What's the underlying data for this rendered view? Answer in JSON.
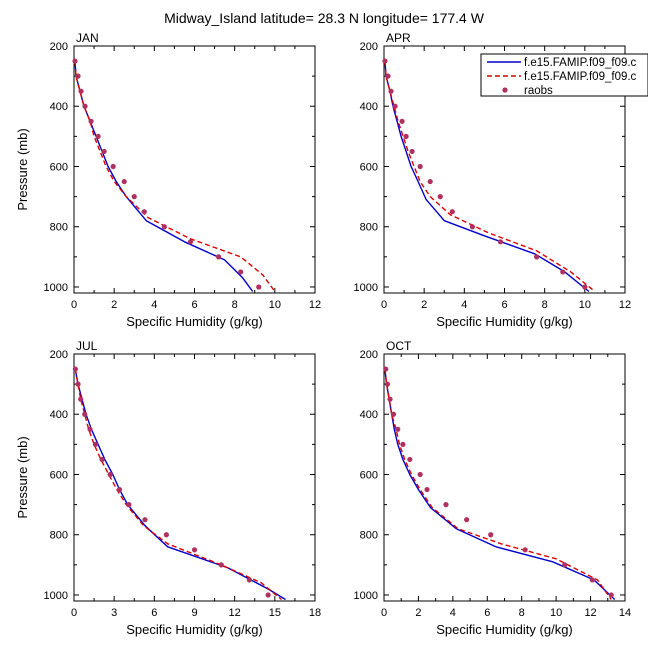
{
  "title": "Midway_Island  latitude= 28.3 N longitude= 177.4 W",
  "legend": [
    {
      "label": "f.e15.FAMIP.f09_f09.c",
      "color": "#0000cc",
      "style": "solid"
    },
    {
      "label": "f.e15.FAMIP.f09_f09.c",
      "color": "#dd0000",
      "style": "dashed"
    },
    {
      "label": "raobs",
      "color": "#b03060",
      "style": "marker"
    }
  ],
  "chart_data": [
    {
      "type": "line",
      "panel": "JAN",
      "xlabel": "Specific Humidity (g/kg)",
      "ylabel": "Pressure (mb)",
      "xlim": [
        0,
        12
      ],
      "ylim": [
        1020,
        200
      ],
      "xticks": [
        0,
        2,
        4,
        6,
        8,
        10,
        12
      ],
      "yticks": [
        200,
        400,
        600,
        800,
        1000
      ],
      "series": [
        {
          "name": "f.e15.FAMIP.f09_f09.c",
          "points": [
            [
              0.05,
              250
            ],
            [
              0.1,
              300
            ],
            [
              0.3,
              350
            ],
            [
              0.5,
              400
            ],
            [
              0.8,
              450
            ],
            [
              1.1,
              500
            ],
            [
              1.4,
              550
            ],
            [
              1.7,
              600
            ],
            [
              2.1,
              650
            ],
            [
              2.6,
              700
            ],
            [
              3.6,
              780
            ],
            [
              5.5,
              850
            ],
            [
              7.5,
              910
            ],
            [
              8.4,
              970
            ],
            [
              8.9,
              1015
            ]
          ]
        },
        {
          "name": "f.e15.FAMIP.f09_f09.c",
          "points": [
            [
              0.05,
              250
            ],
            [
              0.1,
              300
            ],
            [
              0.3,
              350
            ],
            [
              0.5,
              400
            ],
            [
              0.8,
              450
            ],
            [
              1.0,
              500
            ],
            [
              1.3,
              550
            ],
            [
              1.6,
              600
            ],
            [
              2.0,
              650
            ],
            [
              2.6,
              700
            ],
            [
              3.7,
              770
            ],
            [
              5.8,
              840
            ],
            [
              8.3,
              900
            ],
            [
              9.4,
              960
            ],
            [
              10.0,
              1015
            ]
          ]
        },
        {
          "name": "raobs",
          "points": [
            [
              0.05,
              250
            ],
            [
              0.2,
              300
            ],
            [
              0.35,
              350
            ],
            [
              0.55,
              400
            ],
            [
              0.85,
              450
            ],
            [
              1.2,
              500
            ],
            [
              1.5,
              550
            ],
            [
              1.95,
              600
            ],
            [
              2.5,
              650
            ],
            [
              3.0,
              700
            ],
            [
              3.5,
              750
            ],
            [
              4.5,
              800
            ],
            [
              5.8,
              850
            ],
            [
              7.2,
              900
            ],
            [
              8.3,
              950
            ],
            [
              9.2,
              1000
            ]
          ]
        }
      ]
    },
    {
      "type": "line",
      "panel": "APR",
      "xlabel": "Specific Humidity (g/kg)",
      "ylabel": "",
      "xlim": [
        0,
        12
      ],
      "ylim": [
        1020,
        200
      ],
      "xticks": [
        0,
        2,
        4,
        6,
        8,
        10,
        12
      ],
      "yticks": [
        200,
        400,
        600,
        800,
        1000
      ],
      "series": [
        {
          "name": "f.e15.FAMIP.f09_f09.c",
          "points": [
            [
              0.05,
              250
            ],
            [
              0.1,
              300
            ],
            [
              0.3,
              350
            ],
            [
              0.45,
              400
            ],
            [
              0.65,
              450
            ],
            [
              0.85,
              500
            ],
            [
              1.1,
              550
            ],
            [
              1.35,
              600
            ],
            [
              1.7,
              650
            ],
            [
              2.1,
              710
            ],
            [
              3.0,
              780
            ],
            [
              5.0,
              830
            ],
            [
              7.5,
              890
            ],
            [
              9.0,
              950
            ],
            [
              10.2,
              1015
            ]
          ]
        },
        {
          "name": "f.e15.FAMIP.f09_f09.c",
          "points": [
            [
              0.05,
              250
            ],
            [
              0.1,
              300
            ],
            [
              0.3,
              350
            ],
            [
              0.5,
              400
            ],
            [
              0.7,
              450
            ],
            [
              0.95,
              500
            ],
            [
              1.2,
              550
            ],
            [
              1.5,
              600
            ],
            [
              1.8,
              650
            ],
            [
              2.3,
              700
            ],
            [
              3.3,
              760
            ],
            [
              5.2,
              820
            ],
            [
              7.6,
              880
            ],
            [
              9.3,
              950
            ],
            [
              10.5,
              1015
            ]
          ]
        },
        {
          "name": "raobs",
          "points": [
            [
              0.05,
              250
            ],
            [
              0.2,
              300
            ],
            [
              0.35,
              350
            ],
            [
              0.55,
              400
            ],
            [
              0.9,
              450
            ],
            [
              1.1,
              500
            ],
            [
              1.4,
              550
            ],
            [
              1.8,
              600
            ],
            [
              2.3,
              650
            ],
            [
              2.8,
              700
            ],
            [
              3.4,
              750
            ],
            [
              4.4,
              800
            ],
            [
              5.8,
              850
            ],
            [
              7.6,
              900
            ],
            [
              8.9,
              950
            ],
            [
              10.0,
              1000
            ]
          ]
        }
      ]
    },
    {
      "type": "line",
      "panel": "JUL",
      "xlabel": "Specific Humidity (g/kg)",
      "ylabel": "Pressure (mb)",
      "xlim": [
        0,
        18
      ],
      "ylim": [
        1020,
        200
      ],
      "xticks": [
        0,
        3,
        6,
        9,
        12,
        15,
        18
      ],
      "yticks": [
        200,
        400,
        600,
        800,
        1000
      ],
      "series": [
        {
          "name": "f.e15.FAMIP.f09_f09.c",
          "points": [
            [
              0.1,
              250
            ],
            [
              0.3,
              300
            ],
            [
              0.6,
              350
            ],
            [
              0.9,
              400
            ],
            [
              1.3,
              450
            ],
            [
              1.8,
              500
            ],
            [
              2.3,
              550
            ],
            [
              2.9,
              600
            ],
            [
              3.4,
              650
            ],
            [
              4.0,
              700
            ],
            [
              5.3,
              770
            ],
            [
              7.0,
              840
            ],
            [
              11.5,
              910
            ],
            [
              14.5,
              980
            ],
            [
              15.8,
              1015
            ]
          ]
        },
        {
          "name": "f.e15.FAMIP.f09_f09.c",
          "points": [
            [
              0.1,
              250
            ],
            [
              0.3,
              300
            ],
            [
              0.5,
              350
            ],
            [
              0.8,
              400
            ],
            [
              1.1,
              450
            ],
            [
              1.5,
              500
            ],
            [
              2.0,
              550
            ],
            [
              2.6,
              600
            ],
            [
              3.2,
              650
            ],
            [
              3.9,
              700
            ],
            [
              5.2,
              770
            ],
            [
              7.0,
              830
            ],
            [
              11.0,
              900
            ],
            [
              14.0,
              960
            ],
            [
              15.5,
              1015
            ]
          ]
        },
        {
          "name": "raobs",
          "points": [
            [
              0.1,
              250
            ],
            [
              0.3,
              300
            ],
            [
              0.5,
              350
            ],
            [
              0.8,
              400
            ],
            [
              1.2,
              450
            ],
            [
              1.6,
              500
            ],
            [
              2.1,
              550
            ],
            [
              2.7,
              600
            ],
            [
              3.4,
              650
            ],
            [
              4.1,
              700
            ],
            [
              5.3,
              750
            ],
            [
              6.9,
              800
            ],
            [
              9.0,
              850
            ],
            [
              11.0,
              900
            ],
            [
              13.1,
              950
            ],
            [
              14.5,
              1000
            ]
          ]
        }
      ]
    },
    {
      "type": "line",
      "panel": "OCT",
      "xlabel": "Specific Humidity (g/kg)",
      "ylabel": "",
      "xlim": [
        0,
        14
      ],
      "ylim": [
        1020,
        200
      ],
      "xticks": [
        0,
        2,
        4,
        6,
        8,
        10,
        12,
        14
      ],
      "yticks": [
        200,
        400,
        600,
        800,
        1000
      ],
      "series": [
        {
          "name": "f.e15.FAMIP.f09_f09.c",
          "points": [
            [
              0.05,
              250
            ],
            [
              0.15,
              300
            ],
            [
              0.3,
              350
            ],
            [
              0.45,
              400
            ],
            [
              0.6,
              450
            ],
            [
              0.8,
              500
            ],
            [
              1.1,
              550
            ],
            [
              1.5,
              600
            ],
            [
              2.0,
              650
            ],
            [
              2.7,
              710
            ],
            [
              4.2,
              780
            ],
            [
              6.5,
              840
            ],
            [
              9.8,
              890
            ],
            [
              12.2,
              950
            ],
            [
              13.4,
              1015
            ]
          ]
        },
        {
          "name": "f.e15.FAMIP.f09_f09.c",
          "points": [
            [
              0.05,
              250
            ],
            [
              0.15,
              300
            ],
            [
              0.3,
              350
            ],
            [
              0.45,
              400
            ],
            [
              0.7,
              450
            ],
            [
              0.9,
              500
            ],
            [
              1.2,
              550
            ],
            [
              1.6,
              600
            ],
            [
              2.1,
              650
            ],
            [
              2.8,
              710
            ],
            [
              4.3,
              780
            ],
            [
              6.8,
              830
            ],
            [
              10.0,
              880
            ],
            [
              12.4,
              950
            ],
            [
              13.2,
              1015
            ]
          ]
        },
        {
          "name": "raobs",
          "points": [
            [
              0.1,
              250
            ],
            [
              0.2,
              300
            ],
            [
              0.35,
              350
            ],
            [
              0.55,
              400
            ],
            [
              0.8,
              450
            ],
            [
              1.1,
              500
            ],
            [
              1.5,
              550
            ],
            [
              2.1,
              600
            ],
            [
              2.5,
              650
            ],
            [
              3.6,
              700
            ],
            [
              4.8,
              750
            ],
            [
              6.2,
              800
            ],
            [
              8.2,
              850
            ],
            [
              10.5,
              900
            ],
            [
              12.1,
              950
            ],
            [
              13.2,
              1000
            ]
          ]
        }
      ]
    }
  ]
}
